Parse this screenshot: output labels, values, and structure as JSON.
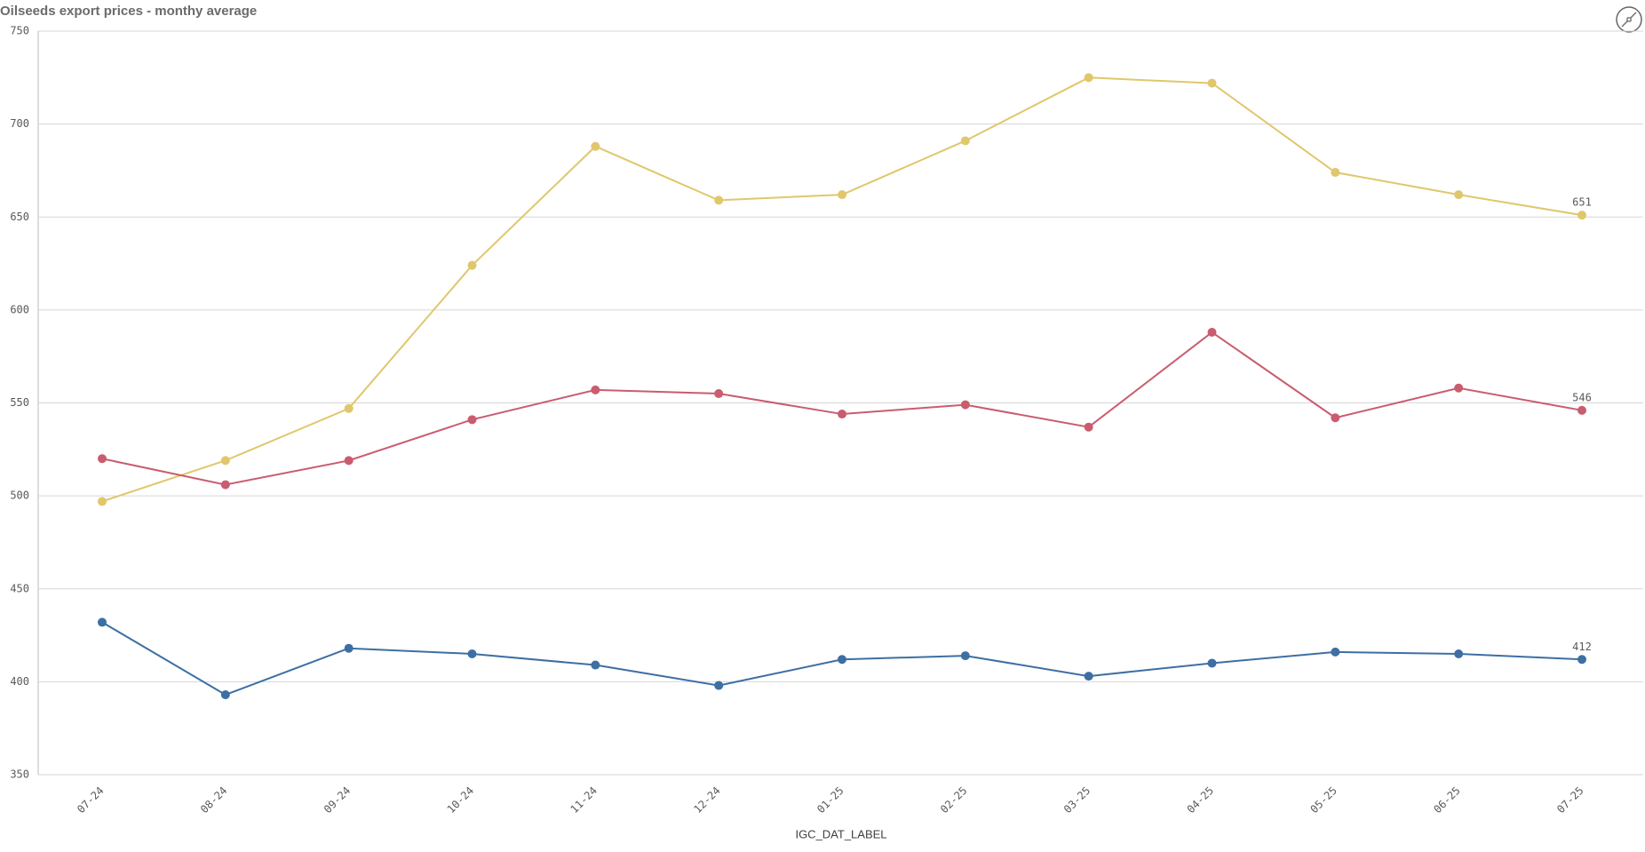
{
  "chart_data": {
    "type": "line",
    "title": "Oilseeds export prices - monthy average",
    "x_label": "IGC_DAT_LABEL",
    "categories": [
      "07-24",
      "08-24",
      "09-24",
      "10-24",
      "11-24",
      "12-24",
      "01-25",
      "02-25",
      "03-25",
      "04-25",
      "05-25",
      "06-25",
      "07-25"
    ],
    "series": [
      {
        "color": "#e0c76b",
        "values": [
          497,
          519,
          547,
          624,
          688,
          659,
          662,
          691,
          725,
          722,
          674,
          662,
          651
        ]
      },
      {
        "color": "#c95c6e",
        "values": [
          520,
          506,
          519,
          541,
          557,
          555,
          544,
          549,
          537,
          588,
          542,
          558,
          546
        ]
      },
      {
        "color": "#3d6fa3",
        "values": [
          432,
          393,
          418,
          415,
          409,
          398,
          412,
          414,
          403,
          410,
          416,
          415,
          412
        ]
      }
    ],
    "ylim": [
      350,
      750
    ],
    "yticks": [
      350,
      400,
      450,
      500,
      550,
      600,
      650,
      700,
      750
    ],
    "grid": true
  }
}
